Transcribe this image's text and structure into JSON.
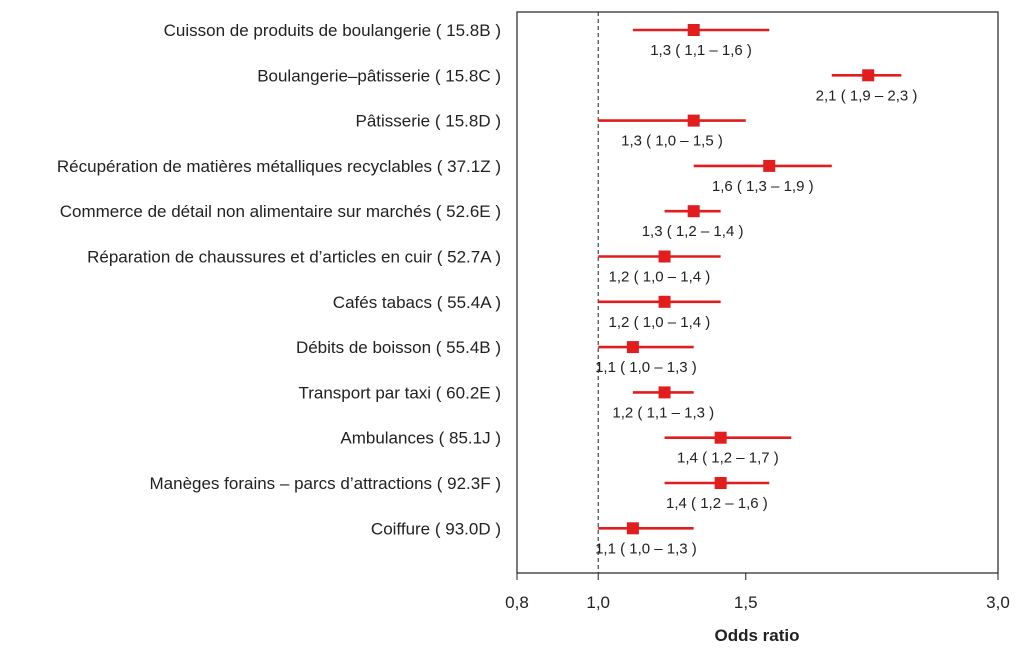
{
  "chart_data": {
    "type": "forest",
    "xlabel": "Odds ratio",
    "xscale": "log",
    "xlim": [
      0.8,
      3.0
    ],
    "xticks": [
      0.8,
      1.0,
      1.5,
      3.0
    ],
    "xtick_labels": [
      "0,8",
      "1,0",
      "1,5",
      "3,0"
    ],
    "reference_line": 1.0,
    "grid": false,
    "marker_color": "#e11d1d",
    "rows": [
      {
        "label": "Cuisson de produits de boulangerie ( 15.8B )",
        "or": 1.3,
        "ci_low": 1.1,
        "ci_high": 1.6,
        "annotation": "1,3  ( 1,1 – 1,6 )"
      },
      {
        "label": "Boulangerie–pâtisserie ( 15.8C )",
        "or": 2.1,
        "ci_low": 1.9,
        "ci_high": 2.3,
        "annotation": "2,1  ( 1,9 – 2,3 )"
      },
      {
        "label": "Pâtisserie ( 15.8D )",
        "or": 1.3,
        "ci_low": 1.0,
        "ci_high": 1.5,
        "annotation": "1,3  ( 1,0 – 1,5 )"
      },
      {
        "label": "Récupération de matières métalliques recyclables ( 37.1Z )",
        "or": 1.6,
        "ci_low": 1.3,
        "ci_high": 1.9,
        "annotation": "1,6  ( 1,3 – 1,9 )"
      },
      {
        "label": "Commerce de détail non alimentaire sur marchés ( 52.6E )",
        "or": 1.3,
        "ci_low": 1.2,
        "ci_high": 1.4,
        "annotation": "1,3  ( 1,2 – 1,4 )"
      },
      {
        "label": "Réparation de chaussures et d’articles en cuir ( 52.7A )",
        "or": 1.2,
        "ci_low": 1.0,
        "ci_high": 1.4,
        "annotation": "1,2  ( 1,0 – 1,4 )"
      },
      {
        "label": "Cafés tabacs ( 55.4A )",
        "or": 1.2,
        "ci_low": 1.0,
        "ci_high": 1.4,
        "annotation": "1,2  ( 1,0 – 1,4 )"
      },
      {
        "label": "Débits de boisson ( 55.4B )",
        "or": 1.1,
        "ci_low": 1.0,
        "ci_high": 1.3,
        "annotation": "1,1  ( 1,0 – 1,3 )"
      },
      {
        "label": "Transport par taxi ( 60.2E )",
        "or": 1.2,
        "ci_low": 1.1,
        "ci_high": 1.3,
        "annotation": "1,2  ( 1,1 – 1,3 )"
      },
      {
        "label": "Ambulances ( 85.1J )",
        "or": 1.4,
        "ci_low": 1.2,
        "ci_high": 1.7,
        "annotation": "1,4  ( 1,2 – 1,7 )"
      },
      {
        "label": "Manèges forains – parcs d’attractions ( 92.3F )",
        "or": 1.4,
        "ci_low": 1.2,
        "ci_high": 1.6,
        "annotation": "1,4  ( 1,2 – 1,6 )"
      },
      {
        "label": "Coiffure ( 93.0D )",
        "or": 1.1,
        "ci_low": 1.0,
        "ci_high": 1.3,
        "annotation": "1,1  ( 1,0 – 1,3 )"
      }
    ]
  }
}
